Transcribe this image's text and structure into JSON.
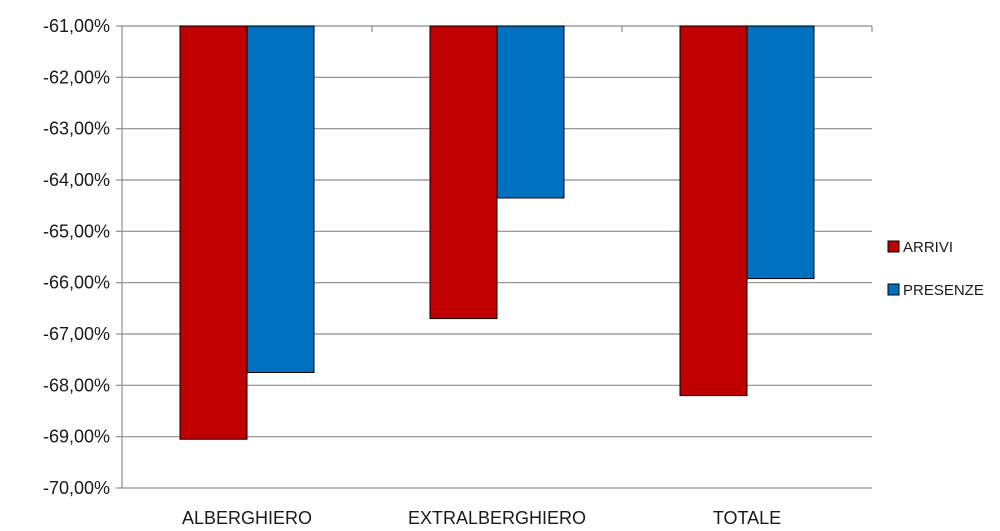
{
  "chart_data": {
    "type": "bar",
    "categories": [
      "ALBERGHIERO",
      "EXTRALBERGHIERO",
      "TOTALE"
    ],
    "series": [
      {
        "name": "ARRIVI",
        "values": [
          -69.05,
          -66.7,
          -68.2
        ],
        "color": "#C00000"
      },
      {
        "name": "PRESENZE",
        "values": [
          -67.75,
          -64.35,
          -65.92
        ],
        "color": "#0070C0"
      }
    ],
    "ylim": [
      -70,
      -61
    ],
    "yticks": [
      -61,
      -62,
      -63,
      -64,
      -65,
      -66,
      -67,
      -68,
      -69,
      -70
    ],
    "ytick_labels": [
      "-61,00%",
      "-62,00%",
      "-63,00%",
      "-64,00%",
      "-65,00%",
      "-66,00%",
      "-67,00%",
      "-68,00%",
      "-69,00%",
      "-70,00%"
    ],
    "grid": true,
    "legend_position": "right"
  }
}
